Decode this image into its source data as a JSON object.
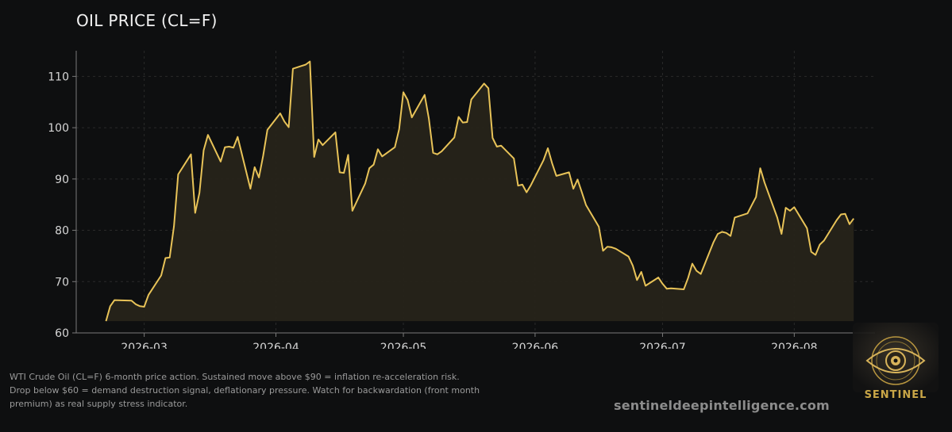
{
  "title": "OIL PRICE (CL=F)",
  "caption": {
    "line1": "WTI Crude Oil (CL=F) 6-month price action. Sustained move above $90 = inflation re-acceleration risk.",
    "line2": "Drop below $60 = demand destruction signal, deflationary pressure. Watch for backwardation (front month",
    "line3": "premium) as real supply stress indicator."
  },
  "website": "sentineldeepintelligence.com",
  "brand": {
    "name": "SENTINEL",
    "logo_icon": "eye-icon"
  },
  "colors": {
    "background": "#0e0f10",
    "line": "#e8c358",
    "fill": "#27241a",
    "grid": "#2a2a2a",
    "text": "#d6d6d6"
  },
  "chart_data": {
    "type": "area",
    "title": "OIL PRICE (CL=F)",
    "xlabel": "",
    "ylabel": "",
    "x_is_date": true,
    "xlim": [
      "2026-02-13",
      "2026-08-20"
    ],
    "ylim": [
      60,
      115
    ],
    "yticks": [
      60,
      70,
      80,
      90,
      100,
      110
    ],
    "xticks": [
      "2026-03",
      "2026-04",
      "2026-05",
      "2026-06",
      "2026-07",
      "2026-08"
    ],
    "grid": true,
    "baseline": 62.3,
    "series": [
      {
        "name": "",
        "points": [
          [
            "2026-02-20",
            62.3
          ],
          [
            "2026-02-21",
            65.2
          ],
          [
            "2026-02-22",
            66.4
          ],
          [
            "2026-02-26",
            66.3
          ],
          [
            "2026-02-27",
            65.6
          ],
          [
            "2026-02-28",
            65.2
          ],
          [
            "2026-03-01",
            65.1
          ],
          [
            "2026-03-02",
            67.4
          ],
          [
            "2026-03-05",
            71.2
          ],
          [
            "2026-03-06",
            74.6
          ],
          [
            "2026-03-07",
            74.7
          ],
          [
            "2026-03-08",
            80.8
          ],
          [
            "2026-03-09",
            90.9
          ],
          [
            "2026-03-12",
            94.8
          ],
          [
            "2026-03-13",
            83.4
          ],
          [
            "2026-03-14",
            87.3
          ],
          [
            "2026-03-15",
            95.6
          ],
          [
            "2026-03-16",
            98.6
          ],
          [
            "2026-03-19",
            93.4
          ],
          [
            "2026-03-20",
            96.2
          ],
          [
            "2026-03-21",
            96.3
          ],
          [
            "2026-03-22",
            96.1
          ],
          [
            "2026-03-23",
            98.2
          ],
          [
            "2026-03-26",
            88.1
          ],
          [
            "2026-03-27",
            92.3
          ],
          [
            "2026-03-28",
            90.3
          ],
          [
            "2026-03-29",
            94.5
          ],
          [
            "2026-03-30",
            99.6
          ],
          [
            "2026-04-02",
            102.8
          ],
          [
            "2026-04-03",
            101.2
          ],
          [
            "2026-04-04",
            100.1
          ],
          [
            "2026-04-05",
            111.5
          ],
          [
            "2026-04-08",
            112.3
          ],
          [
            "2026-04-09",
            112.9
          ],
          [
            "2026-04-10",
            94.3
          ],
          [
            "2026-04-11",
            97.7
          ],
          [
            "2026-04-12",
            96.6
          ],
          [
            "2026-04-15",
            99.1
          ],
          [
            "2026-04-16",
            91.3
          ],
          [
            "2026-04-17",
            91.2
          ],
          [
            "2026-04-18",
            94.7
          ],
          [
            "2026-04-19",
            83.8
          ],
          [
            "2026-04-22",
            89.1
          ],
          [
            "2026-04-23",
            92.1
          ],
          [
            "2026-04-24",
            92.8
          ],
          [
            "2026-04-25",
            95.8
          ],
          [
            "2026-04-26",
            94.4
          ],
          [
            "2026-04-29",
            96.2
          ],
          [
            "2026-04-30",
            99.7
          ],
          [
            "2026-05-01",
            106.9
          ],
          [
            "2026-05-02",
            105.4
          ],
          [
            "2026-05-03",
            102.0
          ],
          [
            "2026-05-06",
            106.4
          ],
          [
            "2026-05-07",
            101.8
          ],
          [
            "2026-05-08",
            95.1
          ],
          [
            "2026-05-09",
            94.8
          ],
          [
            "2026-05-10",
            95.4
          ],
          [
            "2026-05-13",
            98.1
          ],
          [
            "2026-05-14",
            102.1
          ],
          [
            "2026-05-15",
            101.0
          ],
          [
            "2026-05-16",
            101.1
          ],
          [
            "2026-05-17",
            105.5
          ],
          [
            "2026-05-20",
            108.6
          ],
          [
            "2026-05-21",
            107.7
          ],
          [
            "2026-05-22",
            98.0
          ],
          [
            "2026-05-23",
            96.3
          ],
          [
            "2026-05-24",
            96.5
          ],
          [
            "2026-05-27",
            94.0
          ],
          [
            "2026-05-28",
            88.7
          ],
          [
            "2026-05-29",
            88.9
          ],
          [
            "2026-05-30",
            87.4
          ],
          [
            "2026-05-31",
            88.8
          ],
          [
            "2026-06-03",
            93.7
          ],
          [
            "2026-06-04",
            96.0
          ],
          [
            "2026-06-05",
            93.1
          ],
          [
            "2026-06-06",
            90.6
          ],
          [
            "2026-06-09",
            91.3
          ],
          [
            "2026-06-10",
            88.1
          ],
          [
            "2026-06-11",
            89.9
          ],
          [
            "2026-06-12",
            87.4
          ],
          [
            "2026-06-13",
            84.9
          ],
          [
            "2026-06-16",
            80.7
          ],
          [
            "2026-06-17",
            76.0
          ],
          [
            "2026-06-18",
            76.8
          ],
          [
            "2026-06-19",
            76.7
          ],
          [
            "2026-06-20",
            76.4
          ],
          [
            "2026-06-23",
            74.9
          ],
          [
            "2026-06-24",
            73.1
          ],
          [
            "2026-06-25",
            70.3
          ],
          [
            "2026-06-26",
            71.9
          ],
          [
            "2026-06-27",
            69.2
          ],
          [
            "2026-06-30",
            70.8
          ],
          [
            "2026-07-01",
            69.6
          ],
          [
            "2026-07-02",
            68.6
          ],
          [
            "2026-07-03",
            68.7
          ],
          [
            "2026-07-06",
            68.5
          ],
          [
            "2026-07-07",
            70.7
          ],
          [
            "2026-07-08",
            73.5
          ],
          [
            "2026-07-09",
            72.1
          ],
          [
            "2026-07-10",
            71.5
          ],
          [
            "2026-07-13",
            77.7
          ],
          [
            "2026-07-14",
            79.3
          ],
          [
            "2026-07-15",
            79.7
          ],
          [
            "2026-07-16",
            79.5
          ],
          [
            "2026-07-17",
            78.9
          ],
          [
            "2026-07-18",
            82.5
          ],
          [
            "2026-07-21",
            83.3
          ],
          [
            "2026-07-22",
            84.9
          ],
          [
            "2026-07-23",
            86.5
          ],
          [
            "2026-07-24",
            92.1
          ],
          [
            "2026-07-25",
            89.3
          ],
          [
            "2026-07-28",
            82.5
          ],
          [
            "2026-07-29",
            79.3
          ],
          [
            "2026-07-30",
            84.4
          ],
          [
            "2026-07-31",
            83.8
          ],
          [
            "2026-08-01",
            84.5
          ],
          [
            "2026-08-04",
            80.4
          ],
          [
            "2026-08-05",
            75.8
          ],
          [
            "2026-08-06",
            75.2
          ],
          [
            "2026-08-07",
            77.2
          ],
          [
            "2026-08-08",
            78.0
          ],
          [
            "2026-08-11",
            82.0
          ],
          [
            "2026-08-12",
            83.1
          ],
          [
            "2026-08-13",
            83.2
          ],
          [
            "2026-08-14",
            81.2
          ],
          [
            "2026-08-15",
            82.3
          ]
        ]
      }
    ]
  }
}
